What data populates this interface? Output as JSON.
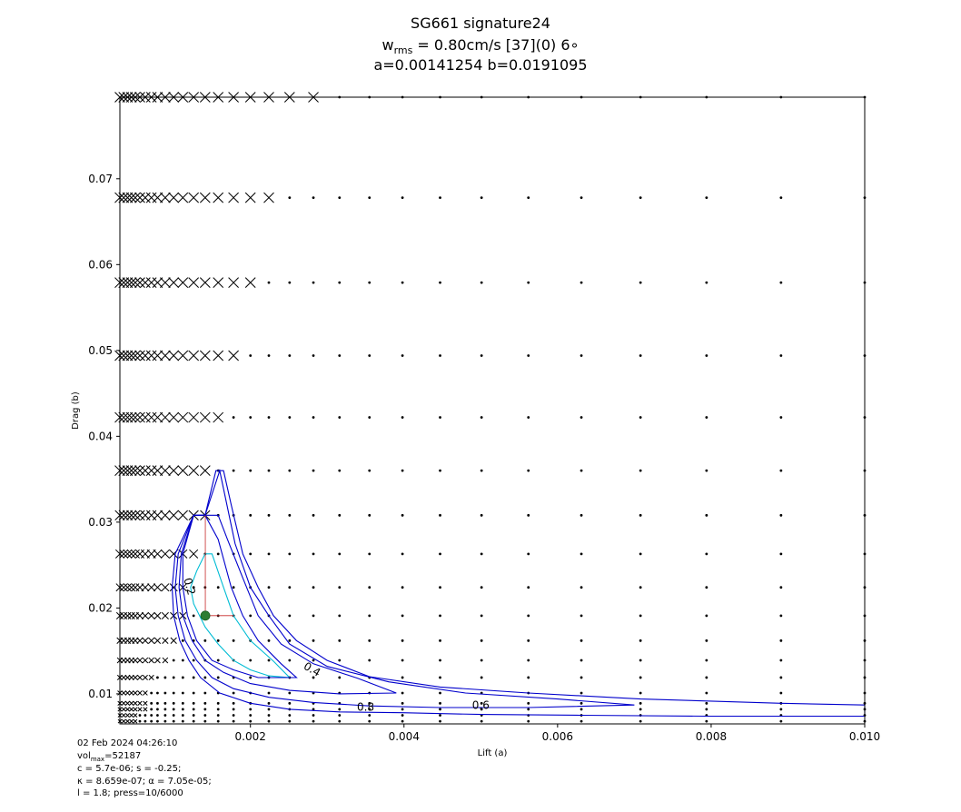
{
  "chart_data": {
    "type": "scatter",
    "title": "SG661 signature24",
    "subtitle_line1": {
      "w": "w",
      "sub": "rms",
      "rest": " = 0.80cm/s [37](0) 6∘"
    },
    "subtitle_line2": "a=0.00141254 b=0.0191095",
    "xlabel": "Lift (a)",
    "ylabel": "Drag (b)",
    "xlim": [
      0.0003,
      0.01
    ],
    "ylim": [
      0.0065,
      0.0795
    ],
    "xticks": [
      0.002,
      0.004,
      0.006,
      0.008,
      0.01
    ],
    "xtick_labels": [
      "0.002",
      "0.004",
      "0.006",
      "0.008",
      "0.010"
    ],
    "yticks": [
      0.01,
      0.02,
      0.03,
      0.04,
      0.05,
      0.06,
      0.07
    ],
    "ytick_labels": [
      "0.01",
      "0.02",
      "0.03",
      "0.04",
      "0.05",
      "0.06",
      "0.07"
    ],
    "grid": false,
    "grid_x": [
      0.0003,
      0.00035,
      0.0004,
      0.00045,
      0.0005,
      0.00056,
      0.00063,
      0.00071,
      0.00079,
      0.00089,
      0.001,
      0.00112,
      0.00126,
      0.00141,
      0.00158,
      0.00178,
      0.002,
      0.00224,
      0.00251,
      0.00282,
      0.00316,
      0.00355,
      0.00398,
      0.00447,
      0.00501,
      0.00562,
      0.00631,
      0.00708,
      0.00794,
      0.00891,
      0.01
    ],
    "grid_y": [
      0.0068,
      0.0075,
      0.0082,
      0.0089,
      0.0101,
      0.0119,
      0.0139,
      0.0162,
      0.0191,
      0.0224,
      0.0263,
      0.0308,
      0.036,
      0.0422,
      0.0494,
      0.0579,
      0.0678,
      0.0795
    ],
    "cross_extent": [
      0.00055,
      0.00055,
      0.00063,
      0.00063,
      0.00063,
      0.00071,
      0.00089,
      0.001,
      0.00112,
      0.00112,
      0.00126,
      0.00141,
      0.00141,
      0.00158,
      0.00178,
      0.002,
      0.00224,
      0.00282
    ],
    "contours": [
      {
        "label": "0.2",
        "color": "#00bcd4",
        "points": [
          [
            0.00141,
            0.0263
          ],
          [
            0.0013,
            0.0243
          ],
          [
            0.00122,
            0.0224
          ],
          [
            0.00126,
            0.0205
          ],
          [
            0.00141,
            0.0178
          ],
          [
            0.00158,
            0.0158
          ],
          [
            0.00178,
            0.0139
          ],
          [
            0.002,
            0.0128
          ],
          [
            0.00224,
            0.0121
          ],
          [
            0.00251,
            0.0119
          ],
          [
            0.0023,
            0.0138
          ],
          [
            0.002,
            0.0162
          ],
          [
            0.00178,
            0.0191
          ],
          [
            0.00165,
            0.0224
          ],
          [
            0.0015,
            0.0263
          ],
          [
            0.00141,
            0.0263
          ]
        ]
      },
      {
        "label": "",
        "color": "#0000cc",
        "points": [
          [
            0.00141,
            0.0308
          ],
          [
            0.00126,
            0.0308
          ],
          [
            0.00112,
            0.0263
          ],
          [
            0.00112,
            0.0224
          ],
          [
            0.00118,
            0.0191
          ],
          [
            0.0013,
            0.0162
          ],
          [
            0.0015,
            0.0139
          ],
          [
            0.00178,
            0.0128
          ],
          [
            0.0021,
            0.0119
          ],
          [
            0.0026,
            0.0119
          ],
          [
            0.0024,
            0.0135
          ],
          [
            0.0021,
            0.0162
          ],
          [
            0.0019,
            0.0191
          ],
          [
            0.00175,
            0.0224
          ],
          [
            0.00158,
            0.028
          ],
          [
            0.00141,
            0.0308
          ]
        ]
      },
      {
        "label": "0.4",
        "color": "#0000cc",
        "points": [
          [
            0.00141,
            0.0308
          ],
          [
            0.00126,
            0.0308
          ],
          [
            0.0011,
            0.0263
          ],
          [
            0.00107,
            0.0224
          ],
          [
            0.00112,
            0.0191
          ],
          [
            0.00124,
            0.0162
          ],
          [
            0.00141,
            0.0139
          ],
          [
            0.00165,
            0.0125
          ],
          [
            0.002,
            0.0112
          ],
          [
            0.00251,
            0.0104
          ],
          [
            0.00316,
            0.01
          ],
          [
            0.0039,
            0.0101
          ],
          [
            0.0034,
            0.0118
          ],
          [
            0.00282,
            0.0135
          ],
          [
            0.0024,
            0.0158
          ],
          [
            0.0021,
            0.0191
          ],
          [
            0.0019,
            0.0235
          ],
          [
            0.0017,
            0.028
          ],
          [
            0.00158,
            0.0308
          ],
          [
            0.00141,
            0.0308
          ]
        ]
      },
      {
        "label": "0.6",
        "color": "#0000cc",
        "points": [
          [
            0.00126,
            0.0308
          ],
          [
            0.00106,
            0.0263
          ],
          [
            0.00102,
            0.0224
          ],
          [
            0.00106,
            0.0191
          ],
          [
            0.00115,
            0.0162
          ],
          [
            0.0013,
            0.0139
          ],
          [
            0.0015,
            0.0119
          ],
          [
            0.00178,
            0.0106
          ],
          [
            0.00224,
            0.0096
          ],
          [
            0.00282,
            0.009
          ],
          [
            0.00355,
            0.0086
          ],
          [
            0.00447,
            0.0084
          ],
          [
            0.00562,
            0.0084
          ],
          [
            0.007,
            0.0087
          ],
          [
            0.006,
            0.0094
          ],
          [
            0.0048,
            0.0101
          ],
          [
            0.0038,
            0.0114
          ],
          [
            0.003,
            0.0132
          ],
          [
            0.00251,
            0.0158
          ],
          [
            0.00224,
            0.0191
          ],
          [
            0.002,
            0.0224
          ],
          [
            0.0018,
            0.0275
          ],
          [
            0.0016,
            0.036
          ],
          [
            0.00141,
            0.0308
          ],
          [
            0.00126,
            0.0308
          ]
        ]
      },
      {
        "label": "0.8",
        "color": "#0000cc",
        "points": [
          [
            0.00126,
            0.0308
          ],
          [
            0.00102,
            0.0263
          ],
          [
            0.00098,
            0.0224
          ],
          [
            0.001,
            0.0191
          ],
          [
            0.00108,
            0.0162
          ],
          [
            0.0012,
            0.0139
          ],
          [
            0.00135,
            0.0119
          ],
          [
            0.0016,
            0.0101
          ],
          [
            0.002,
            0.0089
          ],
          [
            0.00251,
            0.0082
          ],
          [
            0.00316,
            0.0079
          ],
          [
            0.00398,
            0.0078
          ],
          [
            0.00501,
            0.0076
          ],
          [
            0.00631,
            0.0075
          ],
          [
            0.00794,
            0.0074
          ],
          [
            0.01,
            0.0074
          ],
          [
            0.01,
            0.0087
          ],
          [
            0.00891,
            0.0089
          ],
          [
            0.00708,
            0.0094
          ],
          [
            0.00562,
            0.0101
          ],
          [
            0.00447,
            0.0108
          ],
          [
            0.00355,
            0.012
          ],
          [
            0.003,
            0.0139
          ],
          [
            0.0026,
            0.0162
          ],
          [
            0.0023,
            0.0191
          ],
          [
            0.0021,
            0.0224
          ],
          [
            0.0019,
            0.0263
          ],
          [
            0.00175,
            0.032
          ],
          [
            0.00165,
            0.036
          ],
          [
            0.00155,
            0.036
          ],
          [
            0.00141,
            0.0308
          ],
          [
            0.00126,
            0.0308
          ]
        ]
      }
    ],
    "contour_labels": [
      {
        "text": "0.2",
        "x": 0.0012,
        "y": 0.0225,
        "rotation": 75
      },
      {
        "text": "0.4",
        "x": 0.0028,
        "y": 0.0128,
        "rotation": 30
      },
      {
        "text": "0.8",
        "x": 0.0035,
        "y": 0.0084,
        "rotation": 0
      },
      {
        "text": "0.6",
        "x": 0.005,
        "y": 0.0086,
        "rotation": 0
      }
    ],
    "best_point": {
      "x": 0.00141254,
      "y": 0.0191095,
      "color": "#2e7d32"
    },
    "best_point_errorbar": {
      "xmin": 0.00141,
      "xmax": 0.00178,
      "ymin": 0.0191,
      "ymax": 0.0308,
      "color": "#c62828"
    }
  },
  "footer": {
    "date": "02 Feb 2024 04:26:10",
    "vol_prefix": "vol",
    "vol_sub": "max",
    "vol_value": "=52187",
    "line3": "c = 5.7e-06; s = -0.25;",
    "line4": "κ = 8.659e-07; α = 7.05e-05;",
    "line5": "l = 1.8; press=10/6000"
  }
}
